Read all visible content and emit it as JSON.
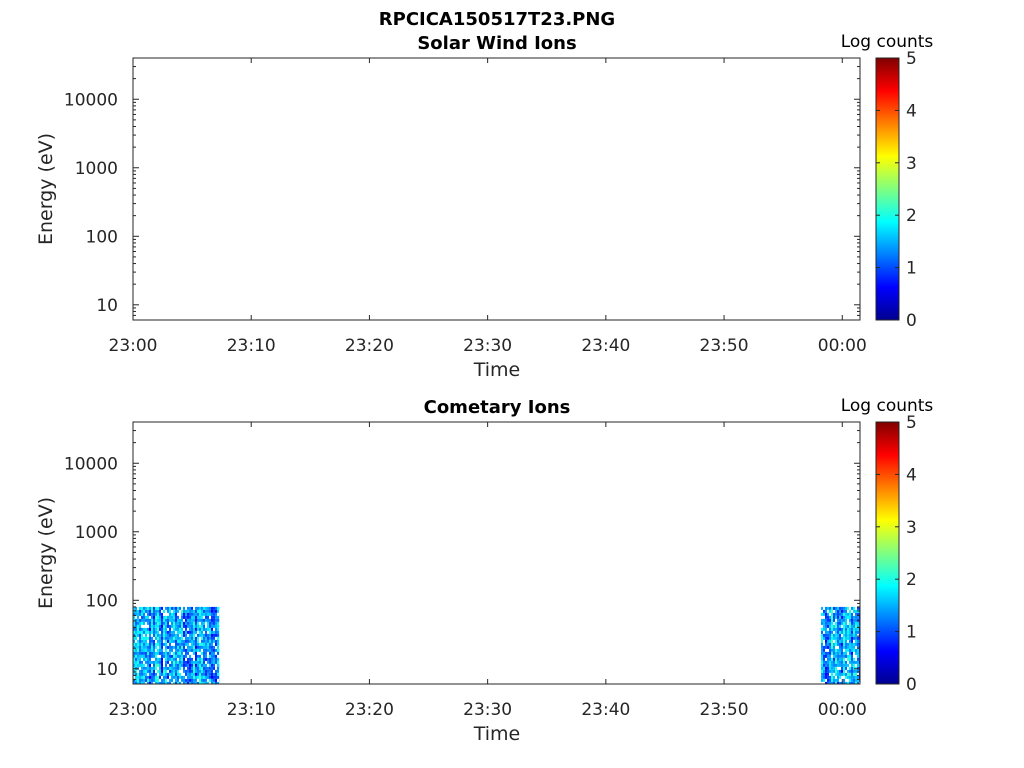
{
  "figure_title": "RPCICA150517T23.PNG",
  "chart_data": [
    {
      "type": "heatmap",
      "title": "Solar Wind Ions",
      "xlabel": "Time",
      "ylabel": "Energy (eV)",
      "x_ticks": [
        "23:00",
        "23:10",
        "23:20",
        "23:30",
        "23:40",
        "23:50",
        "00:00"
      ],
      "xlim_minutes": [
        0,
        61.5
      ],
      "y_scale": "log",
      "y_ticks": [
        10,
        100,
        1000,
        10000
      ],
      "ylim": [
        6,
        40000
      ],
      "colorbar_label": "Log counts",
      "colorbar_ticks": [
        0,
        1,
        2,
        3,
        4,
        5
      ],
      "clim": [
        0,
        5
      ],
      "colormap": "jet",
      "data_blocks": []
    },
    {
      "type": "heatmap",
      "title": "Cometary Ions",
      "xlabel": "Time",
      "ylabel": "Energy (eV)",
      "x_ticks": [
        "23:00",
        "23:10",
        "23:20",
        "23:30",
        "23:40",
        "23:50",
        "00:00"
      ],
      "xlim_minutes": [
        0,
        61.5
      ],
      "y_scale": "log",
      "y_ticks": [
        10,
        100,
        1000,
        10000
      ],
      "ylim": [
        6,
        40000
      ],
      "colorbar_label": "Log counts",
      "colorbar_ticks": [
        0,
        1,
        2,
        3,
        4,
        5
      ],
      "clim": [
        0,
        5
      ],
      "colormap": "jet",
      "data_blocks": [
        {
          "t_start_min": 0,
          "t_end_min": 7.3,
          "e_min": 6,
          "e_max": 80,
          "log_count_range": [
            0.5,
            2.3
          ]
        },
        {
          "t_start_min": 58.2,
          "t_end_min": 61.5,
          "e_min": 6,
          "e_max": 80,
          "log_count_range": [
            0.5,
            2.3
          ]
        }
      ]
    }
  ]
}
